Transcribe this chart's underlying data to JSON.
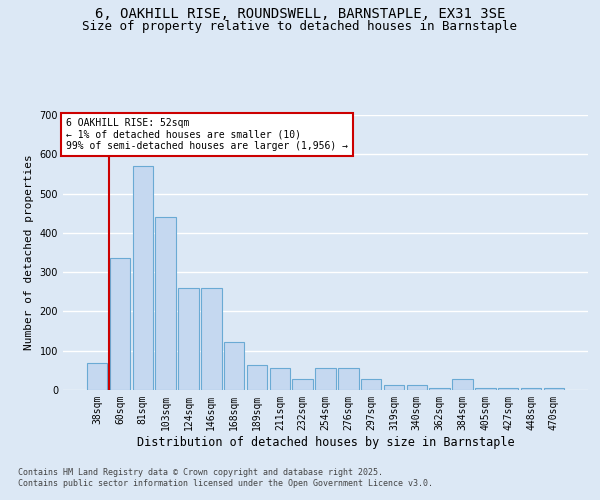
{
  "title_line1": "6, OAKHILL RISE, ROUNDSWELL, BARNSTAPLE, EX31 3SE",
  "title_line2": "Size of property relative to detached houses in Barnstaple",
  "xlabel": "Distribution of detached houses by size in Barnstaple",
  "ylabel": "Number of detached properties",
  "categories": [
    "38sqm",
    "60sqm",
    "81sqm",
    "103sqm",
    "124sqm",
    "146sqm",
    "168sqm",
    "189sqm",
    "211sqm",
    "232sqm",
    "254sqm",
    "276sqm",
    "297sqm",
    "319sqm",
    "340sqm",
    "362sqm",
    "384sqm",
    "405sqm",
    "427sqm",
    "448sqm",
    "470sqm"
  ],
  "values": [
    70,
    335,
    570,
    440,
    260,
    260,
    122,
    63,
    55,
    28,
    55,
    55,
    28,
    14,
    14,
    5,
    28,
    5,
    5,
    5,
    5
  ],
  "bar_color": "#c5d8f0",
  "bar_edge_color": "#6aaad4",
  "annotation_text": "6 OAKHILL RISE: 52sqm\n← 1% of detached houses are smaller (10)\n99% of semi-detached houses are larger (1,956) →",
  "annotation_box_color": "#ffffff",
  "annotation_box_edge_color": "#cc0000",
  "vline_color": "#cc0000",
  "ylim": [
    0,
    700
  ],
  "yticks": [
    0,
    100,
    200,
    300,
    400,
    500,
    600,
    700
  ],
  "background_color": "#dce8f5",
  "grid_color": "#ffffff",
  "footer_text": "Contains HM Land Registry data © Crown copyright and database right 2025.\nContains public sector information licensed under the Open Government Licence v3.0.",
  "title_fontsize": 10,
  "subtitle_fontsize": 9,
  "tick_fontsize": 7,
  "ylabel_fontsize": 8,
  "xlabel_fontsize": 8.5,
  "footer_fontsize": 6,
  "fig_bg_color": "#dce8f5"
}
